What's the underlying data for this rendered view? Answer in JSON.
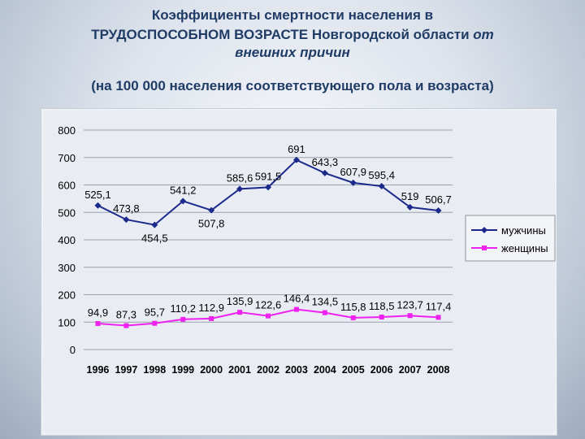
{
  "title": {
    "line1": "Коэффициенты  смертности населения в",
    "line2_main": "ТРУДОСПОСОБНОМ ВОЗРАСТЕ Новгородской области ",
    "line2_italic": "от",
    "line3": "внешних причин"
  },
  "subtitle": "(на 100 000 населения соответствующего пола и возраста)",
  "chart_data": {
    "type": "line",
    "categories": [
      "1996",
      "1997",
      "1998",
      "1999",
      "2000",
      "2001",
      "2002",
      "2003",
      "2004",
      "2005",
      "2006",
      "2007",
      "2008"
    ],
    "series": [
      {
        "name": "мужчины",
        "color": "#1c2a8c",
        "marker": "diamond",
        "values": [
          525.1,
          473.8,
          454.5,
          541.2,
          507.8,
          585.6,
          591.5,
          691,
          643.3,
          607.9,
          595.4,
          519,
          506.7
        ],
        "labels": [
          "525,1",
          "473,8",
          "454,5",
          "541,2",
          "507,8",
          "585,6",
          "591,5",
          "691",
          "643,3",
          "607,9",
          "595,4",
          "519",
          "506,7"
        ]
      },
      {
        "name": "женщины",
        "color": "#ee22ee",
        "marker": "square",
        "values": [
          94.9,
          87.3,
          95.7,
          110.2,
          112.9,
          135.9,
          122.6,
          146.4,
          134.5,
          115.8,
          118.5,
          123.7,
          117.4
        ],
        "labels": [
          "94,9",
          "87,3",
          "95,7",
          "110,2",
          "112,9",
          "135,9",
          "122,6",
          "146,4",
          "134,5",
          "115,8",
          "118,5",
          "123,7",
          "117,4"
        ]
      }
    ],
    "ylim": [
      0,
      800
    ],
    "yticks": [
      0,
      100,
      200,
      300,
      400,
      500,
      600,
      700,
      800
    ],
    "grid": true,
    "legend_position": "right"
  }
}
